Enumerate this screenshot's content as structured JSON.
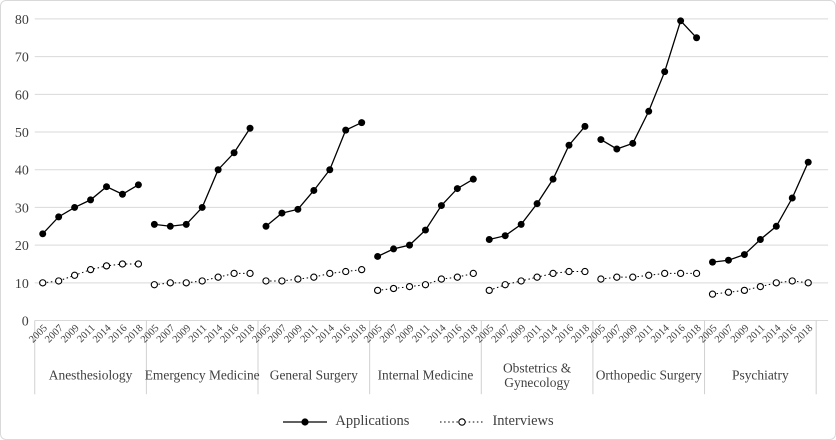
{
  "chart_data": {
    "type": "line",
    "description": "Panel line chart of mean Applications and Interviews per applicant by specialty and year",
    "y_axis": {
      "min": 0,
      "max": 80,
      "step": 10,
      "ticks": [
        "0",
        "10",
        "20",
        "30",
        "40",
        "50",
        "60",
        "70",
        "80"
      ]
    },
    "x_years": [
      "2005",
      "2007",
      "2009",
      "2011",
      "2014",
      "2016",
      "2018"
    ],
    "grid": true,
    "legend_position": "bottom",
    "panels": [
      {
        "specialty": "Anesthesiology",
        "label_lines": [
          "Anesthesiology"
        ],
        "applications": [
          23,
          27.5,
          30,
          32,
          35.5,
          33.5,
          36
        ],
        "interviews": [
          10,
          10.5,
          12,
          13.5,
          14.5,
          15,
          15
        ]
      },
      {
        "specialty": "Emergency Medicine",
        "label_lines": [
          "Emergency Medicine"
        ],
        "applications": [
          25.5,
          25,
          25.5,
          30,
          40,
          44.5,
          51
        ],
        "interviews": [
          9.5,
          10,
          10,
          10.5,
          11.5,
          12.5,
          12.5
        ]
      },
      {
        "specialty": "General Surgery",
        "label_lines": [
          "General Surgery"
        ],
        "applications": [
          25,
          28.5,
          29.5,
          34.5,
          40,
          50.5,
          52.5
        ],
        "interviews": [
          10.5,
          10.5,
          11,
          11.5,
          12.5,
          13,
          13.5
        ]
      },
      {
        "specialty": "Internal Medicine",
        "label_lines": [
          "Internal Medicine"
        ],
        "applications": [
          17,
          19,
          20,
          24,
          30.5,
          35,
          37.5
        ],
        "interviews": [
          8,
          8.5,
          9,
          9.5,
          11,
          11.5,
          12.5
        ]
      },
      {
        "specialty": "Obstetrics & Gynecology",
        "label_lines": [
          "Obstetrics &",
          "Gynecology"
        ],
        "applications": [
          21.5,
          22.5,
          25.5,
          31,
          37.5,
          46.5,
          51.5
        ],
        "interviews": [
          8,
          9.5,
          10.5,
          11.5,
          12.5,
          13,
          13
        ]
      },
      {
        "specialty": "Orthopedic Surgery",
        "label_lines": [
          "Orthopedic Surgery"
        ],
        "applications": [
          48,
          45.5,
          47,
          55.5,
          66,
          79.5,
          75
        ],
        "interviews": [
          11,
          11.5,
          11.5,
          12,
          12.5,
          12.5,
          12.5
        ]
      },
      {
        "specialty": "Psychiatry",
        "label_lines": [
          "Psychiatry"
        ],
        "applications": [
          15.5,
          16,
          17.5,
          21.5,
          25,
          32.5,
          42
        ],
        "interviews": [
          7,
          7.5,
          8,
          9,
          10,
          10.5,
          10
        ]
      }
    ],
    "legend": [
      {
        "name": "Applications",
        "line": "solid",
        "marker": "filled-circle"
      },
      {
        "name": "Interviews",
        "line": "dotted",
        "marker": "open-circle"
      }
    ],
    "colors": {
      "series": "#000000",
      "grid": "#d9d9d9",
      "separator": "#d0d0d0",
      "text": "#404040",
      "border": "#d9d9d9",
      "background": "#ffffff"
    }
  }
}
